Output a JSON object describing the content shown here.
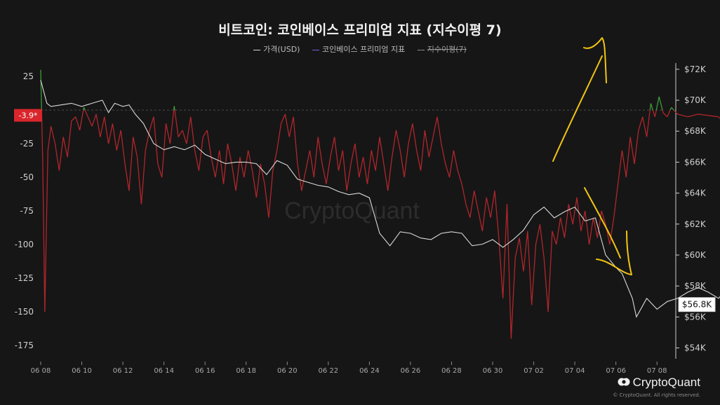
{
  "chart_data": {
    "type": "line",
    "title": "비트코인: 코인베이스 프리미엄 지표 (지수이평 7)",
    "legend": [
      {
        "label": "가격(USD)",
        "color": "#d9d9d9",
        "style": "solid"
      },
      {
        "label": "코인베이스 프리미엄 지표",
        "color": "#6c63d9",
        "style": "solid"
      },
      {
        "label": "지수이평(7)",
        "color": "#9a9a9a",
        "style": "dashed",
        "struck": true
      }
    ],
    "x_ticks": [
      "06 08",
      "06 10",
      "06 12",
      "06 14",
      "06 16",
      "06 18",
      "06 20",
      "06 22",
      "06 24",
      "06 26",
      "06 28",
      "06 30",
      "07 02",
      "07 04",
      "07 06",
      "07 08"
    ],
    "y_left": {
      "ticks": [
        25,
        0,
        -25,
        -50,
        -75,
        -100,
        -125,
        -150,
        -175
      ],
      "tick_labels": [
        "25",
        "",
        "-25",
        "-50",
        "-75",
        "-100",
        "-125",
        "-150",
        "-175"
      ],
      "range": [
        -185,
        35
      ],
      "current_value": -3.9,
      "current_label": "-3.9*"
    },
    "y_right": {
      "ticks": [
        54000,
        56000,
        58000,
        60000,
        62000,
        64000,
        66000,
        68000,
        70000,
        72000
      ],
      "tick_labels": [
        "$54K",
        "$56K",
        "$58K",
        "$60K",
        "$62K",
        "$64K",
        "$66K",
        "$68K",
        "$70K",
        "$72K"
      ],
      "range": [
        53300,
        72400
      ],
      "current_value": 56800,
      "current_label": "$56.8K"
    },
    "x_range_days": [
      0,
      30.3
    ],
    "series": [
      {
        "name": "가격(USD)",
        "color": "#d9d9d9",
        "axis": "right",
        "points": [
          [
            0,
            71300
          ],
          [
            0.3,
            69800
          ],
          [
            0.5,
            69600
          ],
          [
            1,
            69700
          ],
          [
            1.5,
            69800
          ],
          [
            2,
            69600
          ],
          [
            2.5,
            69800
          ],
          [
            3,
            70000
          ],
          [
            3.3,
            69200
          ],
          [
            3.6,
            69800
          ],
          [
            4,
            69600
          ],
          [
            4.3,
            69700
          ],
          [
            4.6,
            69100
          ],
          [
            5,
            68500
          ],
          [
            5.5,
            67200
          ],
          [
            6,
            66800
          ],
          [
            6.5,
            67000
          ],
          [
            7,
            66800
          ],
          [
            7.5,
            67100
          ],
          [
            8,
            66500
          ],
          [
            8.5,
            66200
          ],
          [
            9,
            65900
          ],
          [
            9.5,
            66000
          ],
          [
            10,
            66000
          ],
          [
            10.5,
            65900
          ],
          [
            11,
            65200
          ],
          [
            11.5,
            66100
          ],
          [
            12,
            65800
          ],
          [
            12.5,
            64900
          ],
          [
            13,
            64700
          ],
          [
            13.5,
            64500
          ],
          [
            14,
            64400
          ],
          [
            14.5,
            64100
          ],
          [
            15,
            63900
          ],
          [
            15.5,
            64000
          ],
          [
            16,
            63700
          ],
          [
            16.5,
            61400
          ],
          [
            17,
            60600
          ],
          [
            17.5,
            61500
          ],
          [
            18,
            61400
          ],
          [
            18.5,
            61100
          ],
          [
            19,
            61000
          ],
          [
            19.5,
            61400
          ],
          [
            20,
            61500
          ],
          [
            20.5,
            61400
          ],
          [
            21,
            60600
          ],
          [
            21.5,
            60700
          ],
          [
            22,
            61000
          ],
          [
            22.5,
            60500
          ],
          [
            23,
            61000
          ],
          [
            23.5,
            61600
          ],
          [
            24,
            62600
          ],
          [
            24.5,
            63100
          ],
          [
            25,
            62400
          ],
          [
            25.5,
            62800
          ],
          [
            26,
            63100
          ],
          [
            26.5,
            62200
          ],
          [
            27,
            62400
          ],
          [
            27.5,
            60000
          ],
          [
            28,
            59200
          ],
          [
            28.3,
            58800
          ],
          [
            28.8,
            57200
          ],
          [
            29,
            56000
          ],
          [
            29.5,
            57200
          ],
          [
            30,
            56500
          ],
          [
            30.5,
            57000
          ],
          [
            31,
            57200
          ],
          [
            31.5,
            57600
          ],
          [
            32,
            57900
          ],
          [
            32.5,
            57600
          ],
          [
            33,
            57200
          ],
          [
            33.5,
            58000
          ],
          [
            34,
            57300
          ],
          [
            34.5,
            58300
          ],
          [
            35,
            57200
          ],
          [
            35.5,
            57000
          ],
          [
            36,
            56400
          ],
          [
            36.5,
            55600
          ],
          [
            37,
            55200
          ],
          [
            37.5,
            55400
          ],
          [
            38,
            55800
          ],
          [
            38.5,
            54200
          ],
          [
            38.8,
            55800
          ],
          [
            39,
            56200
          ],
          [
            39.5,
            56600
          ],
          [
            40,
            56700
          ],
          [
            40.5,
            57300
          ],
          [
            41,
            58000
          ],
          [
            41.5,
            58400
          ],
          [
            42,
            57600
          ],
          [
            42.5,
            57200
          ],
          [
            43,
            56800
          ]
        ]
      },
      {
        "name": "코인베이스 프리미엄 지표",
        "color": "#b0262c",
        "color_positive": "#3e9b3a",
        "axis": "left",
        "points": [
          [
            0,
            30
          ],
          [
            0.1,
            -40
          ],
          [
            0.2,
            -150
          ],
          [
            0.35,
            -30
          ],
          [
            0.5,
            -12
          ],
          [
            0.7,
            -25
          ],
          [
            0.9,
            -45
          ],
          [
            1.1,
            -20
          ],
          [
            1.3,
            -35
          ],
          [
            1.5,
            -8
          ],
          [
            1.7,
            -5
          ],
          [
            1.9,
            -15
          ],
          [
            2.1,
            2
          ],
          [
            2.3,
            -5
          ],
          [
            2.5,
            -12
          ],
          [
            2.7,
            -3
          ],
          [
            2.9,
            -20
          ],
          [
            3.1,
            -5
          ],
          [
            3.3,
            -25
          ],
          [
            3.5,
            -10
          ],
          [
            3.7,
            -30
          ],
          [
            3.9,
            -15
          ],
          [
            4.1,
            -40
          ],
          [
            4.3,
            -60
          ],
          [
            4.5,
            -20
          ],
          [
            4.7,
            -35
          ],
          [
            4.9,
            -70
          ],
          [
            5.1,
            -30
          ],
          [
            5.3,
            -15
          ],
          [
            5.5,
            -5
          ],
          [
            5.7,
            -40
          ],
          [
            5.9,
            -50
          ],
          [
            6.1,
            -10
          ],
          [
            6.3,
            -25
          ],
          [
            6.5,
            3
          ],
          [
            6.7,
            -20
          ],
          [
            6.9,
            -15
          ],
          [
            7.1,
            -25
          ],
          [
            7.3,
            -5
          ],
          [
            7.5,
            -30
          ],
          [
            7.7,
            -45
          ],
          [
            7.9,
            -20
          ],
          [
            8.1,
            -15
          ],
          [
            8.3,
            -35
          ],
          [
            8.5,
            -50
          ],
          [
            8.7,
            -30
          ],
          [
            8.9,
            -55
          ],
          [
            9.1,
            -25
          ],
          [
            9.3,
            -40
          ],
          [
            9.5,
            -60
          ],
          [
            9.7,
            -35
          ],
          [
            9.9,
            -50
          ],
          [
            10.1,
            -30
          ],
          [
            10.3,
            -45
          ],
          [
            10.5,
            -65
          ],
          [
            10.7,
            -40
          ],
          [
            10.9,
            -55
          ],
          [
            11.1,
            -80
          ],
          [
            11.3,
            -45
          ],
          [
            11.5,
            -30
          ],
          [
            11.7,
            -10
          ],
          [
            11.9,
            -3
          ],
          [
            12.1,
            -20
          ],
          [
            12.3,
            -5
          ],
          [
            12.5,
            -40
          ],
          [
            12.7,
            -60
          ],
          [
            12.9,
            -45
          ],
          [
            13.1,
            -30
          ],
          [
            13.3,
            -50
          ],
          [
            13.5,
            -20
          ],
          [
            13.7,
            -40
          ],
          [
            13.9,
            -55
          ],
          [
            14.1,
            -35
          ],
          [
            14.3,
            -20
          ],
          [
            14.5,
            -45
          ],
          [
            14.7,
            -30
          ],
          [
            14.9,
            -60
          ],
          [
            15.1,
            -40
          ],
          [
            15.3,
            -25
          ],
          [
            15.5,
            -50
          ],
          [
            15.7,
            -35
          ],
          [
            15.9,
            -55
          ],
          [
            16.1,
            -30
          ],
          [
            16.3,
            -45
          ],
          [
            16.5,
            -20
          ],
          [
            16.7,
            -40
          ],
          [
            16.9,
            -60
          ],
          [
            17.1,
            -35
          ],
          [
            17.3,
            -15
          ],
          [
            17.5,
            -30
          ],
          [
            17.7,
            -50
          ],
          [
            17.9,
            -25
          ],
          [
            18.1,
            -10
          ],
          [
            18.3,
            -30
          ],
          [
            18.5,
            -45
          ],
          [
            18.7,
            -15
          ],
          [
            18.9,
            -35
          ],
          [
            19.1,
            -20
          ],
          [
            19.3,
            -5
          ],
          [
            19.5,
            -25
          ],
          [
            19.7,
            -40
          ],
          [
            19.9,
            -50
          ],
          [
            20.1,
            -30
          ],
          [
            20.3,
            -45
          ],
          [
            20.5,
            -55
          ],
          [
            20.7,
            -70
          ],
          [
            20.9,
            -80
          ],
          [
            21.1,
            -60
          ],
          [
            21.3,
            -75
          ],
          [
            21.5,
            -90
          ],
          [
            21.7,
            -65
          ],
          [
            21.9,
            -80
          ],
          [
            22.1,
            -60
          ],
          [
            22.3,
            -95
          ],
          [
            22.5,
            -140
          ],
          [
            22.7,
            -70
          ],
          [
            22.9,
            -170
          ],
          [
            23.1,
            -110
          ],
          [
            23.3,
            -95
          ],
          [
            23.5,
            -120
          ],
          [
            23.7,
            -90
          ],
          [
            23.9,
            -145
          ],
          [
            24.1,
            -100
          ],
          [
            24.3,
            -85
          ],
          [
            24.5,
            -110
          ],
          [
            24.7,
            -150
          ],
          [
            24.9,
            -90
          ],
          [
            25.1,
            -100
          ],
          [
            25.3,
            -80
          ],
          [
            25.5,
            -95
          ],
          [
            25.7,
            -70
          ],
          [
            25.9,
            -85
          ],
          [
            26.1,
            -65
          ],
          [
            26.3,
            -90
          ],
          [
            26.5,
            -75
          ],
          [
            26.7,
            -100
          ],
          [
            26.9,
            -80
          ],
          [
            27.1,
            -95
          ],
          [
            27.3,
            -75
          ],
          [
            27.5,
            -85
          ],
          [
            27.7,
            -100
          ],
          [
            27.9,
            -80
          ],
          [
            28.1,
            -55
          ],
          [
            28.3,
            -30
          ],
          [
            28.5,
            -50
          ],
          [
            28.7,
            -20
          ],
          [
            28.9,
            -40
          ],
          [
            29.1,
            -15
          ],
          [
            29.3,
            -5
          ],
          [
            29.5,
            -20
          ],
          [
            29.7,
            5
          ],
          [
            29.9,
            -5
          ],
          [
            30.1,
            10
          ],
          [
            30.3,
            -2
          ],
          [
            30.5,
            -5
          ],
          [
            30.7,
            2
          ],
          [
            31,
            -3
          ],
          [
            31.5,
            -5
          ],
          [
            32,
            -3
          ],
          [
            32.5,
            -4
          ],
          [
            33,
            -5
          ],
          [
            33.3,
            -10
          ],
          [
            33.5,
            -25
          ],
          [
            33.7,
            -4
          ]
        ]
      }
    ]
  },
  "branding": {
    "name": "CryptoQuant",
    "watermark": "CryptoQuant",
    "copyright": "© CryptoQuant. All rights reserved."
  }
}
